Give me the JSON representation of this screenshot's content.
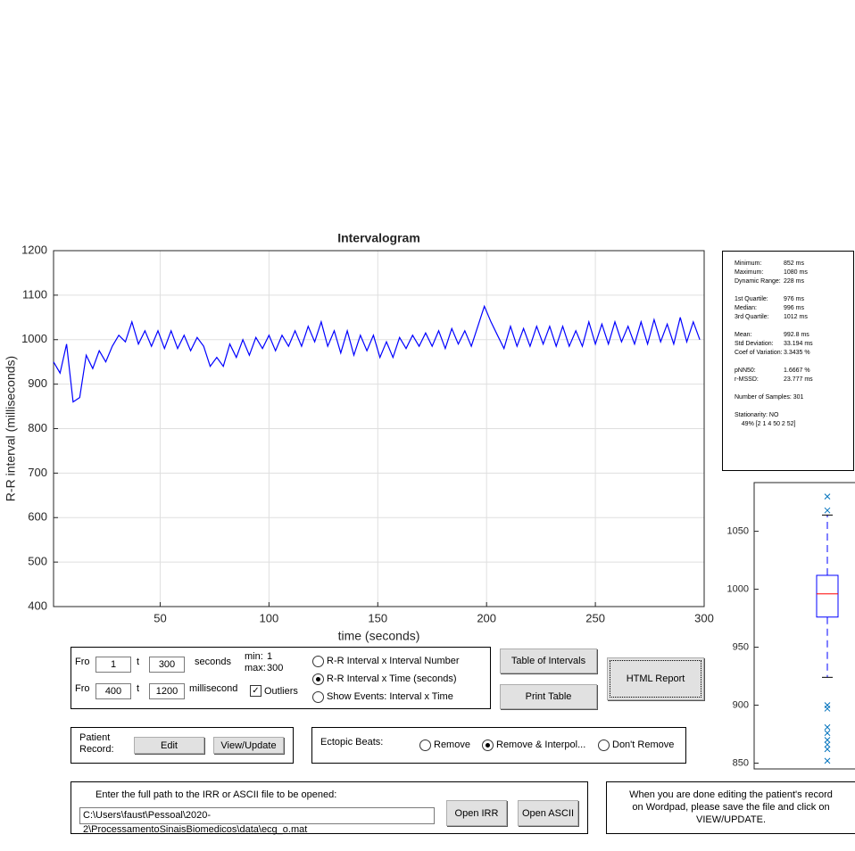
{
  "chart_data": [
    {
      "type": "line",
      "title": "Intervalogram",
      "xlabel": "time (seconds)",
      "ylabel": "R-R interval (milliseconds)",
      "x": [
        1,
        4,
        7,
        10,
        13,
        16,
        19,
        22,
        25,
        28,
        31,
        34,
        37,
        40,
        43,
        46,
        49,
        52,
        55,
        58,
        61,
        64,
        67,
        70,
        73,
        76,
        79,
        82,
        85,
        88,
        91,
        94,
        97,
        100,
        103,
        106,
        109,
        112,
        115,
        118,
        121,
        124,
        127,
        130,
        133,
        136,
        139,
        142,
        145,
        148,
        151,
        154,
        157,
        160,
        163,
        166,
        169,
        172,
        175,
        178,
        181,
        184,
        187,
        190,
        193,
        196,
        199,
        202,
        205,
        208,
        211,
        214,
        217,
        220,
        223,
        226,
        229,
        232,
        235,
        238,
        241,
        244,
        247,
        250,
        253,
        256,
        259,
        262,
        265,
        268,
        271,
        274,
        277,
        280,
        283,
        286,
        289,
        292,
        295,
        298
      ],
      "series": [
        {
          "name": "R-R interval",
          "color": "#0000ff",
          "values": [
            950,
            925,
            990,
            860,
            870,
            965,
            935,
            975,
            950,
            985,
            1010,
            995,
            1040,
            990,
            1020,
            985,
            1020,
            980,
            1020,
            980,
            1010,
            975,
            1005,
            985,
            940,
            960,
            940,
            990,
            960,
            1000,
            965,
            1005,
            980,
            1010,
            975,
            1010,
            985,
            1020,
            985,
            1030,
            995,
            1040,
            985,
            1020,
            970,
            1020,
            965,
            1010,
            975,
            1010,
            960,
            995,
            960,
            1005,
            980,
            1010,
            985,
            1015,
            985,
            1020,
            980,
            1025,
            990,
            1020,
            985,
            1030,
            1075,
            1040,
            1010,
            980,
            1030,
            985,
            1025,
            985,
            1030,
            990,
            1030,
            985,
            1030,
            985,
            1020,
            985,
            1040,
            990,
            1035,
            990,
            1040,
            995,
            1030,
            990,
            1040,
            990,
            1045,
            995,
            1035,
            990,
            1050,
            995,
            1040,
            1000
          ]
        }
      ],
      "xlim": [
        1,
        300
      ],
      "xticks": [
        50,
        100,
        150,
        200,
        250,
        300
      ],
      "ylim": [
        400,
        1200
      ],
      "yticks": [
        400,
        500,
        600,
        700,
        800,
        900,
        1000,
        1100,
        1200
      ],
      "grid": true
    },
    {
      "type": "box",
      "ylim": [
        845,
        1092
      ],
      "yticks": [
        850,
        900,
        950,
        1000,
        1050
      ],
      "q1": 976,
      "median": 996,
      "q3": 1012,
      "whisker_low": 924,
      "whisker_high": 1064,
      "outliers": [
        1080,
        1068,
        900,
        897,
        881,
        876,
        870,
        866,
        862,
        852
      ],
      "box_color": "#0000ff",
      "median_color": "#ff0000",
      "outlier_color": "#0072bd"
    }
  ],
  "stats_panel": [
    [
      [
        "Minimum:",
        "852 ms"
      ],
      [
        "Maximum:",
        "1080 ms"
      ],
      [
        "Dynamic Range:",
        "228 ms"
      ]
    ],
    [
      [
        "1st Quartile:",
        "976 ms"
      ],
      [
        "Median:",
        "996 ms"
      ],
      [
        "3rd Quartile:",
        "1012 ms"
      ]
    ],
    [
      [
        "Mean:",
        "992.8 ms"
      ],
      [
        "Std Deviation:",
        "33.194 ms"
      ],
      [
        "Coef of Variation:",
        "3.3435 %"
      ]
    ],
    [
      [
        "pNN50:",
        "1.6667 %"
      ],
      [
        "r-MSSD:",
        "23.777 ms"
      ]
    ],
    [
      [
        "Number of Samples: 301",
        ""
      ]
    ],
    [
      [
        "Stationarity: NO",
        ""
      ],
      [
        "    49% [2 1 4 50 2 52]",
        ""
      ]
    ]
  ],
  "range_controls": {
    "from1": "Fro",
    "from1_value": "1",
    "to1": "t",
    "to1_value": "300",
    "unit1": "seconds",
    "min_label": "min:",
    "min_value": "1",
    "max_label": "max:",
    "max_value": "300",
    "from2": "Fro",
    "from2_value": "400",
    "to2": "t",
    "to2_value": "1200",
    "unit2": "millisecond",
    "outliers": "Outliers",
    "outliers_checked": true
  },
  "plot_modes": {
    "options": [
      "R-R Interval x Interval Number",
      "R-R Interval x Time (seconds)",
      "Show Events: Interval x Time"
    ],
    "selected": 1
  },
  "buttons": {
    "table": "Table of Intervals",
    "print": "Print Table",
    "html": "HTML Report"
  },
  "patient": {
    "label": "Patient Record:",
    "edit": "Edit",
    "view": "View/Update"
  },
  "ectopic": {
    "label": "Ectopic Beats:",
    "options": [
      "Remove",
      "Remove & Interpol...",
      "Don't Remove"
    ],
    "selected": 1
  },
  "file": {
    "prompt": "Enter the full path to the IRR or ASCII file to be opened:",
    "path": "C:\\Users\\faust\\Pessoal\\2020-2\\ProcessamentoSinaisBiomedicos\\data\\ecg_o.mat",
    "open_irr": "Open IRR",
    "open_ascii": "Open ASCII"
  },
  "note": "When you are done editing the patient's record on Wordpad, please save the file and click on VIEW/UPDATE."
}
